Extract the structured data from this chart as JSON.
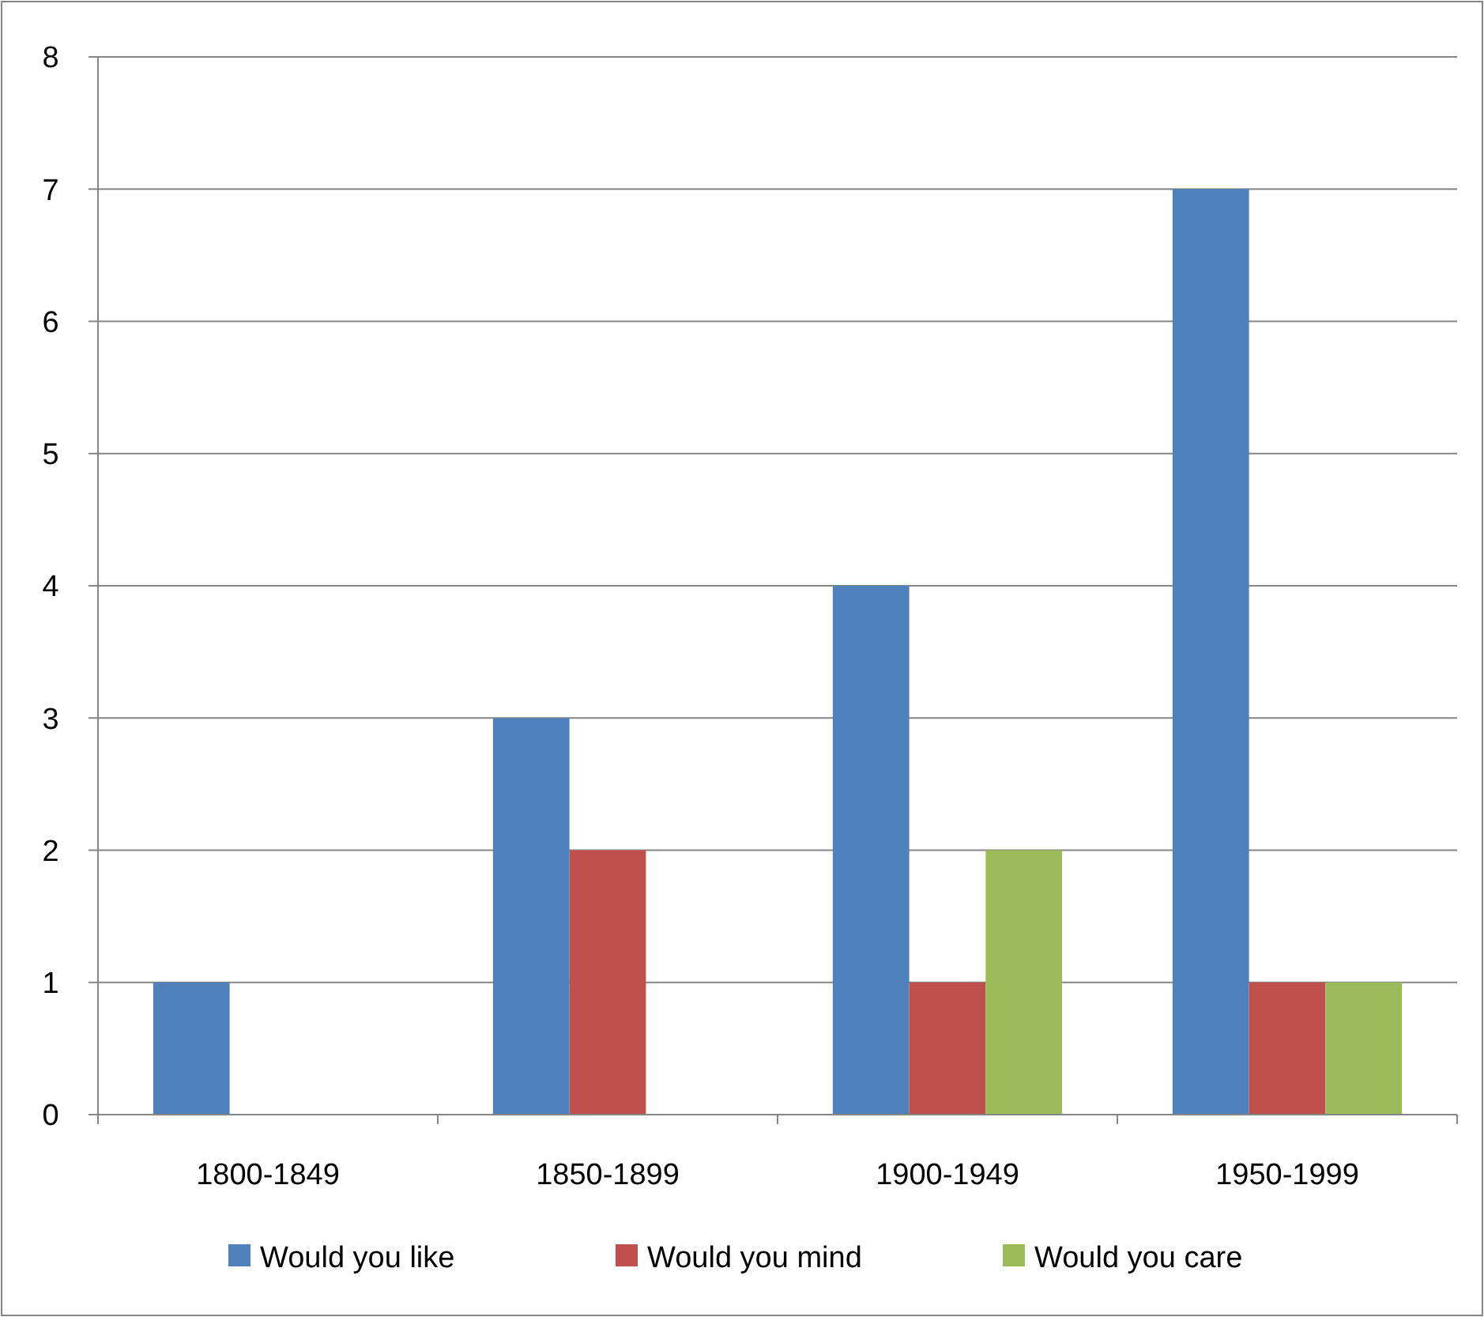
{
  "chart_data": {
    "type": "bar",
    "categories": [
      "1800-1849",
      "1850-1899",
      "1900-1949",
      "1950-1999"
    ],
    "series": [
      {
        "name": "Would you like",
        "color": "#4f81bd",
        "values": [
          1,
          3,
          4,
          7
        ]
      },
      {
        "name": "Would you mind",
        "color": "#c0504d",
        "values": [
          0,
          2,
          1,
          1
        ]
      },
      {
        "name": "Would you care",
        "color": "#9bbb59",
        "values": [
          0,
          0,
          2,
          1
        ]
      }
    ],
    "ylim": [
      0,
      8
    ],
    "yticks": [
      0,
      1,
      2,
      3,
      4,
      5,
      6,
      7,
      8
    ],
    "grid": "y",
    "legend": "bottom"
  }
}
